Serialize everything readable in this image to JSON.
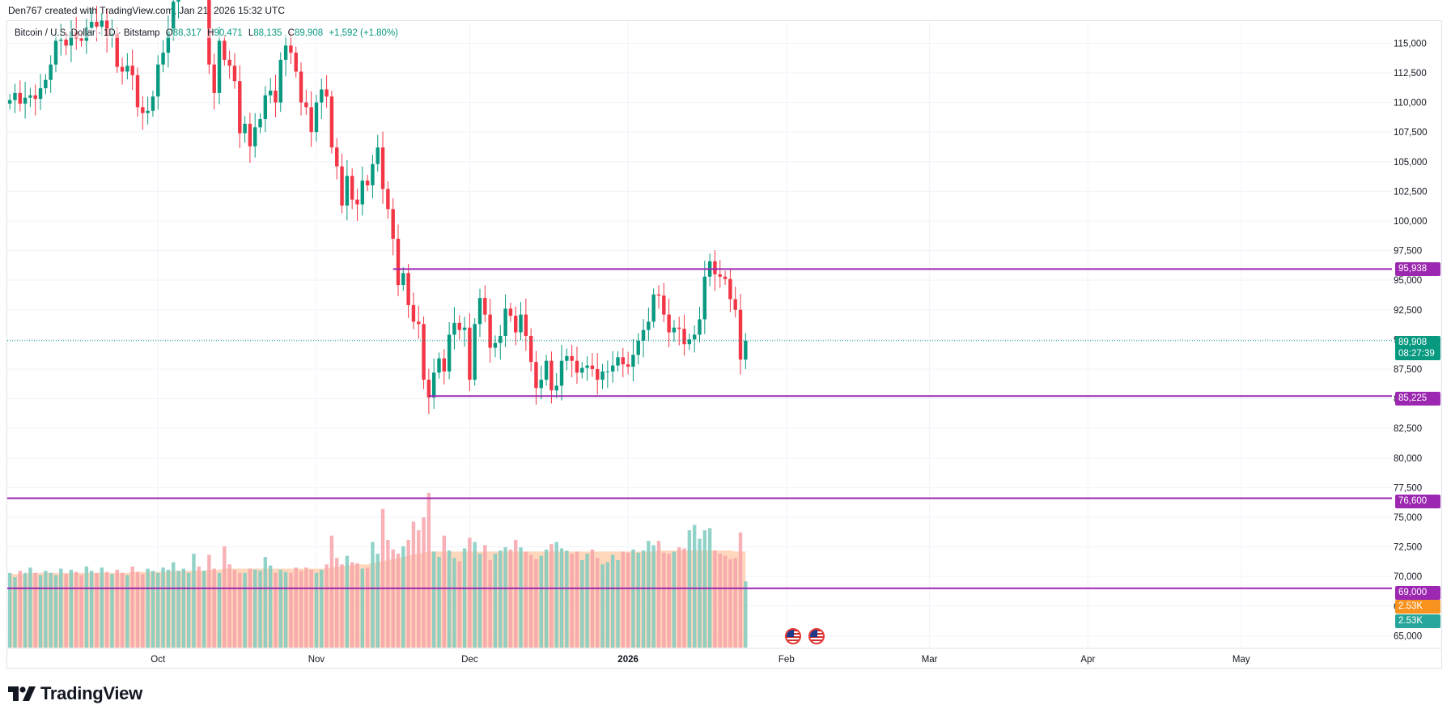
{
  "header": {
    "text": "Den767 created with TradingView.com, Jan 21, 2026 15:32 UTC"
  },
  "legend": {
    "symbol": "Bitcoin / U.S. Dollar · 1D · Bitstamp",
    "open_label": "O",
    "open": "88,317",
    "high_label": "H",
    "high": "90,471",
    "low_label": "L",
    "low": "88,135",
    "close_label": "C",
    "close": "89,908",
    "change": "+1,592 (+1.80%)"
  },
  "price_labels": {
    "current_price": "89,908",
    "countdown": "08:27:39",
    "level_95938": "95,938",
    "level_85225": "85,225",
    "level_76600": "76,600",
    "level_69000": "69,000",
    "volume_ma": "2.53K",
    "volume": "2.53K"
  },
  "brand": {
    "name": "TradingView"
  },
  "colors": {
    "up": "#089981",
    "down": "#f23645",
    "level_line": "#9c27b0",
    "volume_up": "#7fcbbf",
    "volume_down": "#f7a3a9",
    "volume_ma_fill": "#ffc9a6"
  },
  "chart_data": {
    "type": "candlestick",
    "title": "Bitcoin / U.S. Dollar · 1D · Bitstamp",
    "ylim": [
      64000,
      116800
    ],
    "y_ticks": [
      "115,000",
      "112,500",
      "110,000",
      "107,500",
      "105,000",
      "102,500",
      "100,000",
      "97,500",
      "95,000",
      "92,500",
      "90,000",
      "87,500",
      "85,000",
      "82,500",
      "80,000",
      "77,500",
      "75,000",
      "72,500",
      "70,000",
      "67,500",
      "65,000"
    ],
    "x_ticks": [
      "Oct",
      "Nov",
      "Dec",
      "2026",
      "Feb",
      "Mar",
      "Apr",
      "May"
    ],
    "bold_x_ticks": [
      "2026"
    ],
    "start_date": "2025-09-02",
    "x_end_date": "2026-05-31",
    "closes": [
      110200,
      110800,
      109900,
      110400,
      110600,
      110300,
      111200,
      111900,
      113200,
      115200,
      115300,
      114800,
      116000,
      115400,
      115200,
      116300,
      116800,
      116400,
      116900,
      115600,
      115800,
      113000,
      112600,
      113100,
      112300,
      109600,
      109100,
      109300,
      110500,
      113200,
      114200,
      116000,
      118500,
      120600,
      122300,
      123100,
      124600,
      121700,
      122000,
      113200,
      110800,
      115200,
      113600,
      113100,
      111800,
      107400,
      108200,
      106300,
      107900,
      108600,
      110600,
      111000,
      110000,
      113600,
      114800,
      114200,
      112600,
      110000,
      109600,
      107500,
      110000,
      111100,
      110500,
      106200,
      104600,
      101300,
      103800,
      101800,
      101400,
      103400,
      103000,
      104800,
      106200,
      102700,
      101000,
      98500,
      94600,
      95600,
      92900,
      91500,
      91300,
      86600,
      85100,
      87200,
      88400,
      87300,
      90400,
      91400,
      90800,
      91000,
      86600,
      91300,
      93500,
      92100,
      89300,
      89700,
      90300,
      92600,
      92000,
      90600,
      92100,
      90300,
      88100,
      85900,
      86600,
      88200,
      85700,
      86100,
      88200,
      88600,
      88200,
      87200,
      87600,
      87800,
      87500,
      86600,
      87300,
      87300,
      87800,
      88500,
      87900,
      87700,
      88700,
      89900,
      90800,
      91500,
      93800,
      93700,
      92100,
      90600,
      91000,
      90900,
      89600,
      90000,
      90400,
      91700,
      95300,
      96600,
      95500,
      95300,
      95100,
      93400,
      92500,
      88300,
      89900
    ],
    "annotations": {
      "horizontal_levels": [
        {
          "value": 95938,
          "label": "95,938",
          "start_date": "2025-11-16"
        },
        {
          "value": 85225,
          "label": "85,225",
          "start_date": "2025-11-23"
        },
        {
          "value": 76600,
          "label": "76,600",
          "start_date": "2025-09-02"
        },
        {
          "value": 69000,
          "label": "69,000",
          "start_date": "2025-09-02"
        }
      ],
      "last_price_line": 89908
    },
    "volume": {
      "values": [
        70,
        66,
        72,
        70,
        75,
        70,
        68,
        72,
        70,
        68,
        74,
        69,
        73,
        71,
        68,
        76,
        72,
        70,
        75,
        71,
        69,
        73,
        70,
        68,
        76,
        71,
        69,
        74,
        72,
        70,
        75,
        73,
        80,
        72,
        74,
        70,
        88,
        76,
        72,
        87,
        74,
        70,
        95,
        78,
        73,
        70,
        70,
        74,
        73,
        72,
        85,
        77,
        70,
        73,
        71,
        70,
        75,
        72,
        75,
        73,
        70,
        73,
        78,
        105,
        84,
        78,
        86,
        80,
        79,
        74,
        75,
        99,
        88,
        130,
        101,
        92,
        88,
        95,
        101,
        118,
        110,
        122,
        145,
        90,
        85,
        105,
        91,
        84,
        81,
        93,
        103,
        99,
        88,
        96,
        82,
        88,
        91,
        94,
        92,
        101,
        94,
        90,
        87,
        83,
        86,
        92,
        97,
        99,
        93,
        91,
        88,
        90,
        82,
        88,
        92,
        84,
        78,
        80,
        87,
        82,
        90,
        89,
        92,
        89,
        91,
        100,
        96,
        100,
        89,
        88,
        90,
        94,
        93,
        110,
        115,
        102,
        110,
        112,
        91,
        88,
        86,
        83,
        84,
        108,
        62
      ],
      "ma": [
        69,
        69,
        69,
        69,
        70,
        70,
        70,
        70,
        70,
        70,
        70,
        70,
        70,
        70,
        70,
        70,
        70,
        70,
        70,
        70,
        70,
        70,
        70,
        70,
        71,
        71,
        71,
        71,
        71,
        71,
        71,
        71,
        72,
        72,
        72,
        72,
        72,
        72,
        72,
        73,
        73,
        73,
        74,
        74,
        74,
        74,
        74,
        74,
        74,
        74,
        74,
        74,
        74,
        74,
        74,
        74,
        74,
        74,
        74,
        74,
        74,
        74,
        74,
        75,
        76,
        76,
        77,
        77,
        78,
        78,
        78,
        79,
        80,
        81,
        82,
        83,
        84,
        85,
        86,
        87,
        88,
        89,
        90,
        90,
        90,
        90,
        90,
        90,
        90,
        90,
        90,
        90,
        90,
        90,
        90,
        90,
        90,
        90,
        90,
        90,
        90,
        90,
        90,
        90,
        90,
        90,
        90,
        90,
        90,
        90,
        90,
        90,
        90,
        90,
        90,
        90,
        90,
        90,
        90,
        90,
        90,
        90,
        90,
        90,
        90,
        90,
        90,
        91,
        91,
        91,
        91,
        91,
        91,
        91,
        91,
        91,
        91,
        91,
        91,
        91,
        91,
        91,
        90,
        90,
        90
      ]
    }
  }
}
